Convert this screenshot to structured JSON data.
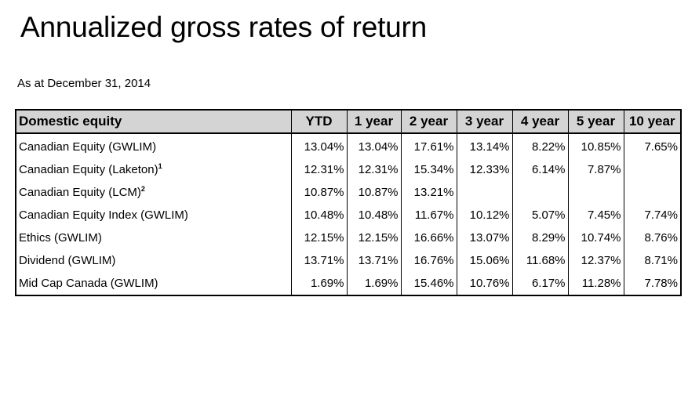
{
  "title": "Annualized gross rates of return",
  "as_at": "As at December 31, 2014",
  "table": {
    "headers": [
      "Domestic equity",
      "YTD",
      "1 year",
      "2 year",
      "3 year",
      "4 year",
      "5 year",
      "10 year"
    ],
    "rows": [
      {
        "name": "Canadian Equity (GWLIM)",
        "sup": "",
        "values": [
          "13.04%",
          "13.04%",
          "17.61%",
          "13.14%",
          "8.22%",
          "10.85%",
          "7.65%"
        ]
      },
      {
        "name": "Canadian Equity (Laketon)",
        "sup": "1",
        "values": [
          "12.31%",
          "12.31%",
          "15.34%",
          "12.33%",
          "6.14%",
          "7.87%",
          ""
        ]
      },
      {
        "name": "Canadian Equity (LCM)",
        "sup": "2",
        "values": [
          "10.87%",
          "10.87%",
          "13.21%",
          "",
          "",
          "",
          ""
        ]
      },
      {
        "name": "Canadian Equity Index (GWLIM)",
        "sup": "",
        "values": [
          "10.48%",
          "10.48%",
          "11.67%",
          "10.12%",
          "5.07%",
          "7.45%",
          "7.74%"
        ]
      },
      {
        "name": "Ethics (GWLIM)",
        "sup": "",
        "values": [
          "12.15%",
          "12.15%",
          "16.66%",
          "13.07%",
          "8.29%",
          "10.74%",
          "8.76%"
        ]
      },
      {
        "name": "Dividend (GWLIM)",
        "sup": "",
        "values": [
          "13.71%",
          "13.71%",
          "16.76%",
          "15.06%",
          "11.68%",
          "12.37%",
          "8.71%"
        ]
      },
      {
        "name": "Mid Cap Canada (GWLIM)",
        "sup": "",
        "values": [
          "1.69%",
          "1.69%",
          "15.46%",
          "10.76%",
          "6.17%",
          "11.28%",
          "7.78%"
        ]
      }
    ]
  },
  "colors": {
    "header_background": "#d4d4d4",
    "border": "#000000"
  }
}
